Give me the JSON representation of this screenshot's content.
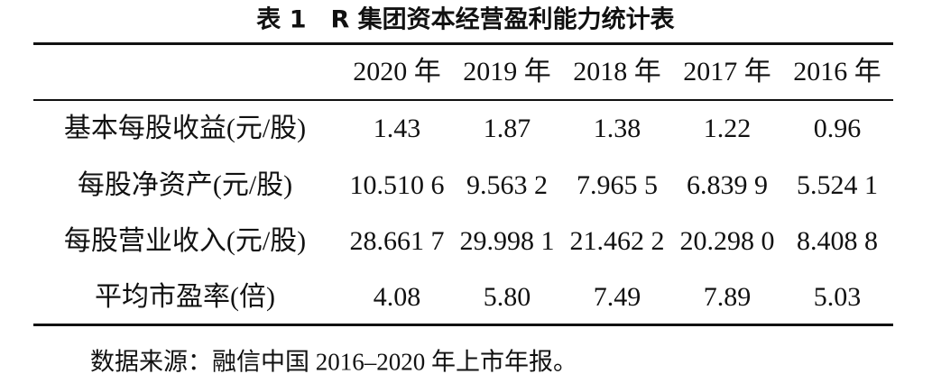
{
  "title": "表 1　R 集团资本经营盈利能力统计表",
  "table": {
    "columns": [
      "2020 年",
      "2019 年",
      "2018 年",
      "2017 年",
      "2016 年"
    ],
    "rows": [
      [
        "基本每股收益(元/股)",
        "1.43",
        "1.87",
        "1.38",
        "1.22",
        "0.96"
      ],
      [
        "每股净资产(元/股)",
        "10.510 6",
        "9.563 2",
        "7.965 5",
        "6.839 9",
        "5.524 1"
      ],
      [
        "每股营业收入(元/股)",
        "28.661 7",
        "29.998 1",
        "21.462 2",
        "20.298 0",
        "8.408 8"
      ],
      [
        "平均市盈率(倍)",
        "4.08",
        "5.80",
        "7.49",
        "7.89",
        "5.03"
      ]
    ]
  },
  "note": "数据来源：融信中国 2016–2020 年上市年报。"
}
